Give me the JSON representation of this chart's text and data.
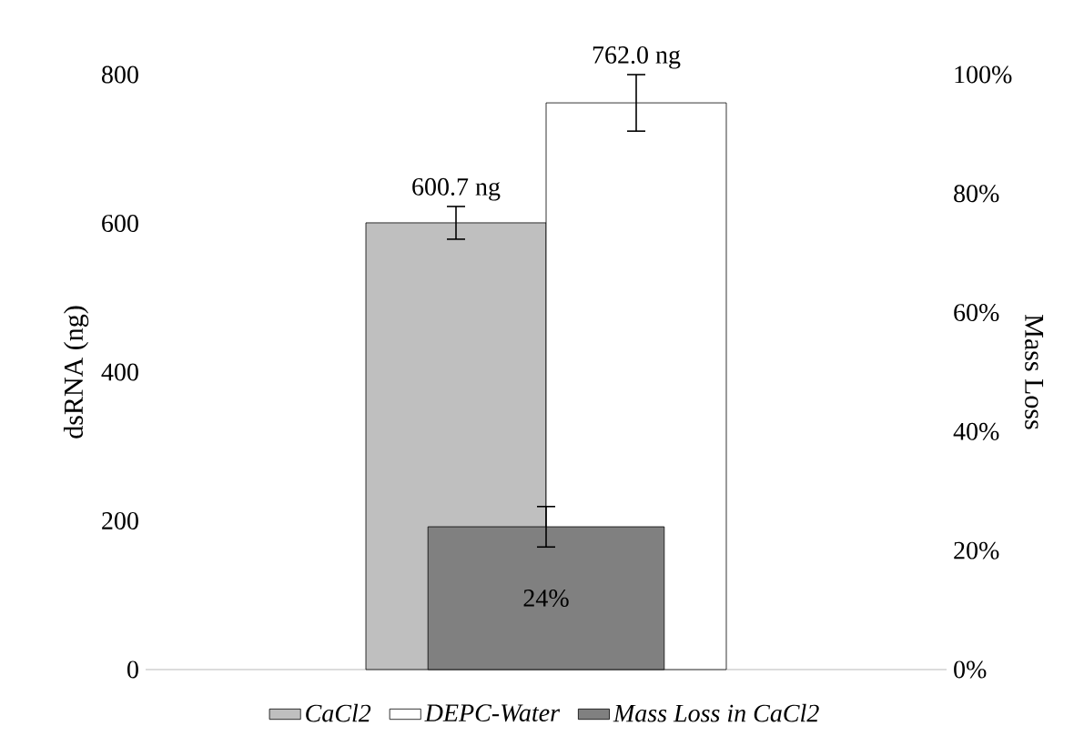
{
  "chart_data": {
    "type": "bar",
    "categories": [
      null
    ],
    "series": [
      {
        "name": "CaCl2",
        "color": "#bfbfbf",
        "values": [
          600.7
        ],
        "errors": [
          22
        ],
        "value_labels": [
          "600.7 ng"
        ]
      },
      {
        "name": "DEPC-Water",
        "color": "#ffffff",
        "values": [
          762.0
        ],
        "errors": [
          38
        ],
        "value_labels": [
          "762.0 ng"
        ]
      },
      {
        "name": "Mass Loss in CaCl2",
        "color": "#808080",
        "values": [
          24
        ],
        "errors": [
          3.4
        ],
        "value_labels": [
          "24%"
        ],
        "axis": "y2"
      }
    ],
    "ylabel": "dsRNA (ng)",
    "y2label": "Mass Loss",
    "ylim": [
      0,
      800
    ],
    "yticks": [
      0,
      200,
      400,
      600,
      800
    ],
    "y2lim": [
      0,
      100
    ],
    "y2ticks": [
      {
        "value": 0,
        "label": "0%"
      },
      {
        "value": 20,
        "label": "20%"
      },
      {
        "value": 40,
        "label": "40%"
      },
      {
        "value": 60,
        "label": "60%"
      },
      {
        "value": 80,
        "label": "80%"
      },
      {
        "value": 100,
        "label": "100%"
      }
    ],
    "legend": "bottom"
  }
}
